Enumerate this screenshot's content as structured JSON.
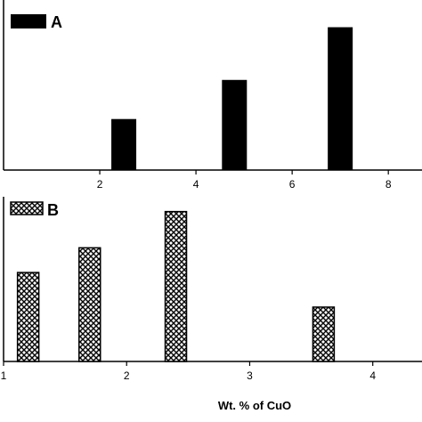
{
  "chart_data": [
    {
      "type": "bar",
      "legend_label": "A",
      "legend_position": "top-left",
      "bar_style": "solid",
      "bar_color": "#000000",
      "x": [
        2.5,
        4.8,
        7.0
      ],
      "values": [
        0.3,
        0.53,
        0.84
      ],
      "xlim": [
        0,
        8.7
      ],
      "ylim": [
        0,
        1
      ],
      "xticks": [
        2,
        4,
        6,
        8
      ],
      "xtick_labels": [
        "2",
        "4",
        "6",
        "8"
      ],
      "grid": false
    },
    {
      "type": "bar",
      "legend_label": "B",
      "legend_position": "top-left",
      "bar_style": "crosshatch",
      "bar_color": "#000000",
      "x": [
        1.2,
        1.7,
        2.4,
        3.6
      ],
      "values": [
        0.54,
        0.69,
        0.91,
        0.33
      ],
      "xlim": [
        1,
        4.4
      ],
      "ylim": [
        0,
        1
      ],
      "xticks": [
        1,
        2,
        3,
        4
      ],
      "xtick_labels": [
        "1",
        "2",
        "3",
        "4"
      ],
      "xlabel": "Wt. % of CuO",
      "grid": false
    }
  ]
}
